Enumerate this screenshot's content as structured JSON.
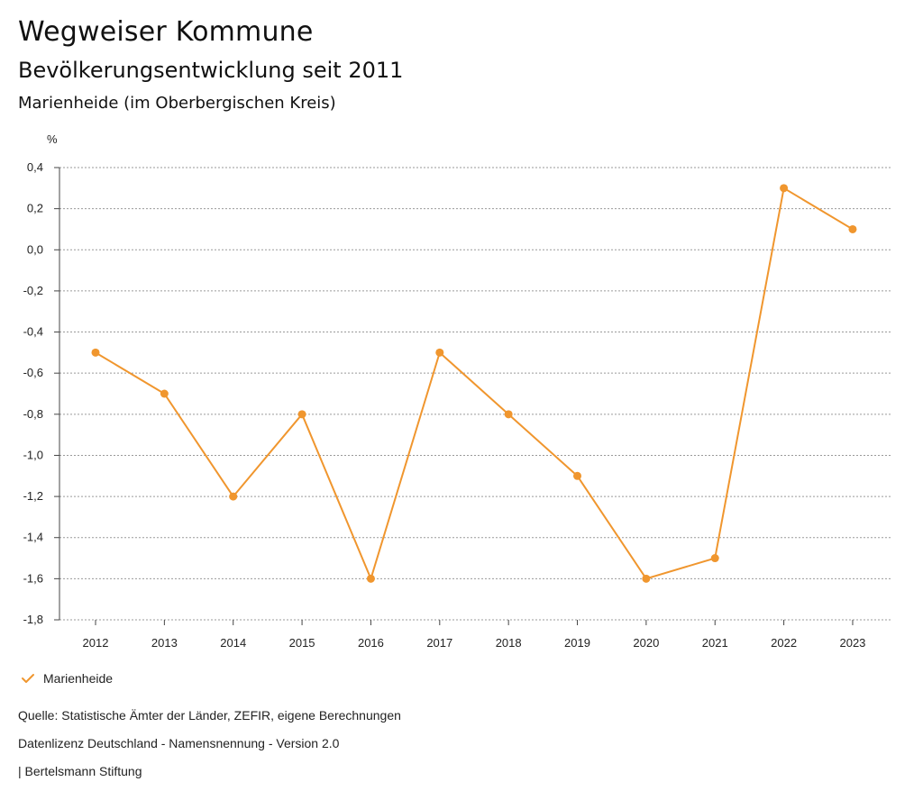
{
  "header": {
    "title": "Wegweiser Kommune",
    "subtitle": "Bevölkerungsentwicklung seit 2011",
    "region": "Marienheide (im Oberbergischen Kreis)"
  },
  "chart_data": {
    "type": "line",
    "ylabel": "%",
    "ylim": [
      -1.8,
      0.4
    ],
    "yticks": [
      0.4,
      0.2,
      0.0,
      -0.2,
      -0.4,
      -0.6,
      -0.8,
      -1.0,
      -1.2,
      -1.4,
      -1.6,
      -1.8
    ],
    "ytick_labels": [
      "0,4",
      "0,2",
      "0,0",
      "-0,2",
      "-0,4",
      "-0,6",
      "-0,8",
      "-1,0",
      "-1,2",
      "-1,4",
      "-1,6",
      "-1,8"
    ],
    "categories": [
      "2012",
      "2013",
      "2014",
      "2015",
      "2016",
      "2017",
      "2018",
      "2019",
      "2020",
      "2021",
      "2022",
      "2023"
    ],
    "series": [
      {
        "name": "Marienheide",
        "color": "#F0962E",
        "values": [
          -0.5,
          -0.7,
          -1.2,
          -0.8,
          -1.6,
          -0.5,
          -0.8,
          -1.1,
          -1.6,
          -1.5,
          0.3,
          0.1
        ]
      }
    ],
    "grid": true,
    "legend_position": "bottom-left"
  },
  "legend": {
    "label": "Marienheide",
    "icon": "check-icon"
  },
  "footer": {
    "source": "Quelle: Statistische Ämter der Länder, ZEFIR, eigene Berechnungen",
    "license": "Datenlizenz Deutschland - Namensnennung - Version 2.0",
    "credit": "| Bertelsmann Stiftung"
  }
}
